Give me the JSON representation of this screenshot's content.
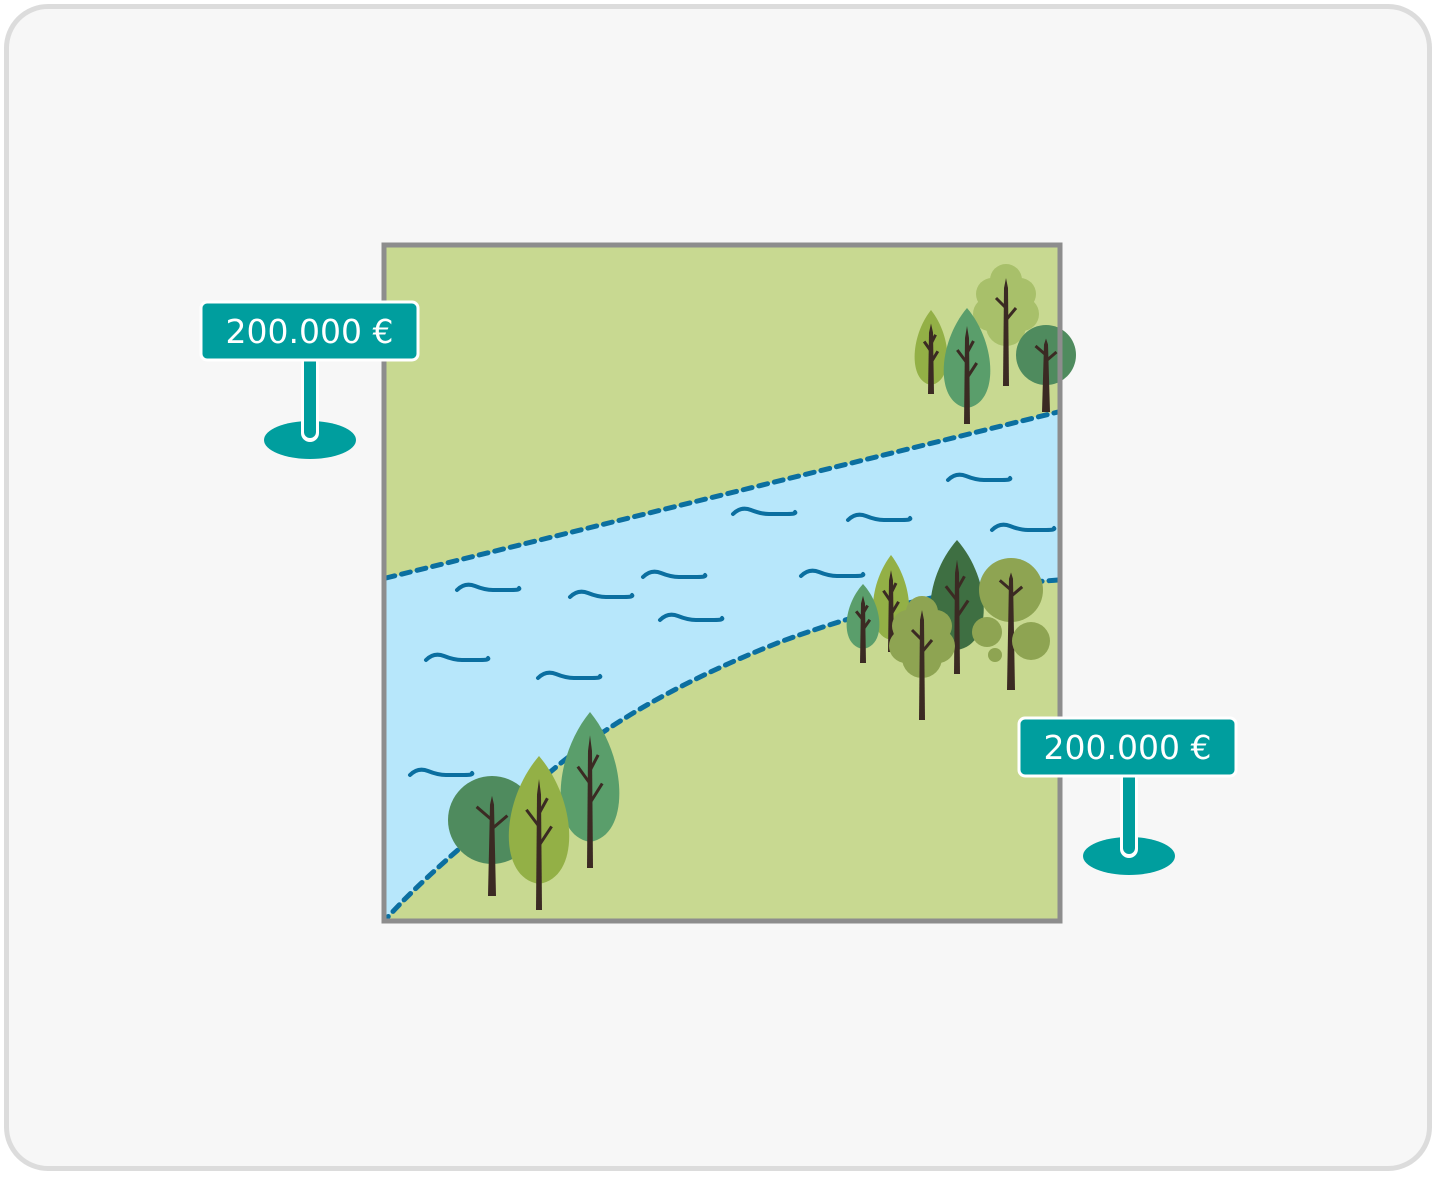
{
  "colors": {
    "land": "#c8d991",
    "water": "#b7e7fb",
    "shoreline": "#0b6fa0",
    "frame": "#8d8d8d",
    "sign": "#009e9e",
    "trunk": "#3b2a23",
    "tree_greens": [
      "#4f8b5e",
      "#5a9e6b",
      "#93b046",
      "#a8c06a",
      "#8ea452",
      "#3e6f42"
    ]
  },
  "parcels": {
    "left_price": "200.000 €",
    "right_price": "200.000 €"
  },
  "icons": {
    "sign": "price-sign-icon",
    "tree": "tree-icon",
    "wave": "wave-icon"
  }
}
